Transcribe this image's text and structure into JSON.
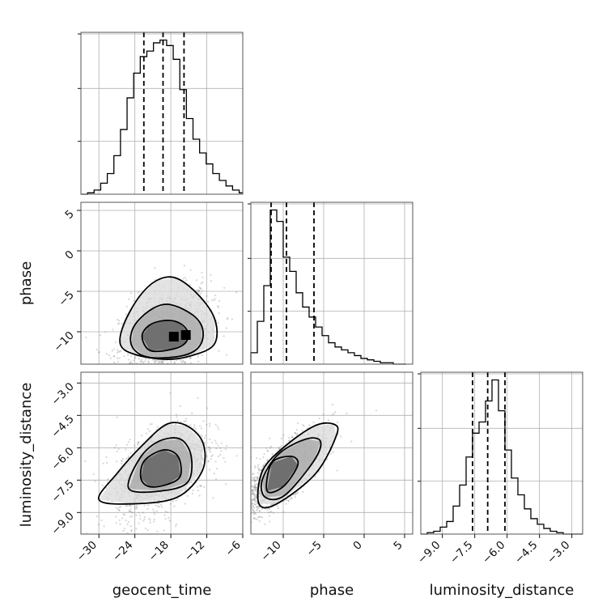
{
  "chart_data": {
    "type": "corner",
    "parameters": [
      "geocent_time",
      "phase",
      "luminosity_distance"
    ],
    "ranges": {
      "geocent_time": [
        -33,
        -6
      ],
      "phase": [
        -14,
        6
      ],
      "luminosity_distance": [
        -10,
        -2.5
      ]
    },
    "ticks": {
      "geocent_time": [
        -30,
        -24,
        -18,
        -12,
        -6
      ],
      "phase": [
        -10,
        -5,
        0,
        5
      ],
      "luminosity_distance": [
        -9.0,
        -7.5,
        -6.0,
        -4.5,
        -3.0
      ]
    },
    "tick_labels": {
      "geocent_time": [
        "−30",
        "−24",
        "−18",
        "−12",
        "−6"
      ],
      "phase": [
        "−10",
        "−5",
        "0",
        "5"
      ],
      "luminosity_distance": [
        "−9.0",
        "−7.5",
        "−6.0",
        "−4.5",
        "−3.0"
      ]
    },
    "quantiles": {
      "geocent_time": [
        -22.5,
        -19.3,
        -15.8
      ],
      "phase": [
        -11.5,
        -9.6,
        -6.2
      ],
      "luminosity_distance": [
        -7.6,
        -6.9,
        -6.1
      ]
    },
    "histograms": {
      "geocent_time": {
        "edges": [
          -33,
          -31.9,
          -30.8,
          -29.7,
          -28.6,
          -27.5,
          -26.4,
          -25.3,
          -24.2,
          -23.1,
          -22.0,
          -20.9,
          -19.8,
          -18.7,
          -17.6,
          -16.5,
          -15.4,
          -14.3,
          -13.2,
          -12.1,
          -11.0,
          -9.9,
          -8.8,
          -7.7,
          -6.6,
          -6.0
        ],
        "counts": [
          0,
          1,
          3,
          8,
          15,
          28,
          47,
          70,
          88,
          100,
          104,
          110,
          112,
          108,
          98,
          76,
          55,
          40,
          30,
          22,
          15,
          10,
          6,
          3,
          1
        ]
      },
      "phase": {
        "edges": [
          -14,
          -13.2,
          -12.4,
          -11.6,
          -10.8,
          -10.0,
          -9.2,
          -8.4,
          -7.6,
          -6.8,
          -6.0,
          -5.2,
          -4.4,
          -3.6,
          -2.8,
          -2.0,
          -1.2,
          -0.4,
          0.4,
          1.2,
          2.0,
          2.8,
          3.6,
          4.4,
          5.2
        ],
        "counts": [
          8,
          30,
          55,
          108,
          100,
          75,
          65,
          50,
          40,
          33,
          26,
          20,
          15,
          12,
          10,
          8,
          6,
          4,
          3,
          2,
          1,
          1,
          0,
          0
        ]
      },
      "luminosity_distance": {
        "edges": [
          -10.0,
          -9.7,
          -9.4,
          -9.1,
          -8.8,
          -8.5,
          -8.2,
          -7.9,
          -7.6,
          -7.3,
          -7.0,
          -6.7,
          -6.4,
          -6.1,
          -5.8,
          -5.5,
          -5.2,
          -4.9,
          -4.6,
          -4.3,
          -4.0,
          -3.7,
          -3.4,
          -3.1,
          -2.8,
          -2.5
        ],
        "counts": [
          0,
          1,
          2,
          5,
          9,
          20,
          35,
          55,
          72,
          80,
          95,
          110,
          88,
          60,
          40,
          28,
          18,
          11,
          7,
          4,
          2,
          1,
          0,
          0,
          0
        ]
      }
    },
    "panels_2d": [
      {
        "x": "geocent_time",
        "y": "phase",
        "center": [
          -19.0,
          -10.3
        ],
        "contours": [
          {
            "level": 0.39,
            "points": [
              [
                -21.5,
                -12.3
              ],
              [
                -18.0,
                -12.2
              ],
              [
                -15.6,
                -11.4
              ],
              [
                -15.2,
                -10.0
              ],
              [
                -16.6,
                -8.9
              ],
              [
                -19.0,
                -8.6
              ],
              [
                -21.6,
                -9.2
              ],
              [
                -22.8,
                -10.6
              ]
            ]
          },
          {
            "level": 0.86,
            "points": [
              [
                -22.5,
                -13.0
              ],
              [
                -18.5,
                -13.2
              ],
              [
                -14.6,
                -12.6
              ],
              [
                -12.8,
                -11.2
              ],
              [
                -12.9,
                -9.2
              ],
              [
                -15.0,
                -7.6
              ],
              [
                -18.6,
                -6.6
              ],
              [
                -21.6,
                -7.4
              ],
              [
                -24.2,
                -9.4
              ],
              [
                -24.6,
                -11.6
              ]
            ]
          },
          {
            "level": 0.99,
            "points": [
              [
                -24.0,
                -12.8
              ],
              [
                -19.0,
                -13.4
              ],
              [
                -14.8,
                -13.0
              ],
              [
                -10.8,
                -11.6
              ],
              [
                -10.6,
                -8.6
              ],
              [
                -13.2,
                -5.6
              ],
              [
                -17.0,
                -3.4
              ],
              [
                -20.2,
                -3.6
              ],
              [
                -23.2,
                -5.6
              ],
              [
                -25.8,
                -9.0
              ],
              [
                -26.4,
                -11.6
              ]
            ]
          }
        ],
        "density_peak": [
          [
            -17.5,
            -10.6
          ],
          [
            -15.5,
            -10.4
          ]
        ]
      },
      {
        "x": "geocent_time",
        "y": "luminosity_distance",
        "center": [
          -19.5,
          -7.0
        ],
        "contours": [
          {
            "level": 0.39,
            "points": [
              [
                -23.0,
                -7.4
              ],
              [
                -21.6,
                -7.8
              ],
              [
                -18.6,
                -7.7
              ],
              [
                -16.4,
                -7.3
              ],
              [
                -16.8,
                -6.4
              ],
              [
                -19.2,
                -6.1
              ],
              [
                -22.4,
                -6.6
              ]
            ]
          },
          {
            "level": 0.86,
            "points": [
              [
                -25.0,
                -7.9
              ],
              [
                -19.6,
                -8.0
              ],
              [
                -15.2,
                -7.6
              ],
              [
                -14.6,
                -6.4
              ],
              [
                -16.4,
                -5.6
              ],
              [
                -20.0,
                -5.7
              ],
              [
                -23.2,
                -6.5
              ]
            ]
          },
          {
            "level": 0.99,
            "points": [
              [
                -30.0,
                -8.4
              ],
              [
                -24.6,
                -8.6
              ],
              [
                -17.0,
                -8.3
              ],
              [
                -12.8,
                -7.1
              ],
              [
                -12.6,
                -5.8
              ],
              [
                -15.2,
                -5.0
              ],
              [
                -18.6,
                -4.9
              ],
              [
                -22.8,
                -5.9
              ],
              [
                -27.0,
                -7.2
              ]
            ]
          }
        ]
      },
      {
        "x": "phase",
        "y": "luminosity_distance",
        "center": [
          -10.5,
          -7.3
        ],
        "contours": [
          {
            "level": 0.39,
            "points": [
              [
                -12.0,
                -8.0
              ],
              [
                -10.0,
                -7.8
              ],
              [
                -8.2,
                -6.8
              ],
              [
                -9.0,
                -6.4
              ],
              [
                -11.4,
                -6.7
              ]
            ]
          },
          {
            "level": 0.86,
            "points": [
              [
                -12.2,
                -8.3
              ],
              [
                -9.8,
                -8.2
              ],
              [
                -6.2,
                -6.6
              ],
              [
                -5.4,
                -5.7
              ],
              [
                -7.2,
                -5.6
              ],
              [
                -10.6,
                -6.3
              ],
              [
                -12.6,
                -7.5
              ]
            ]
          },
          {
            "level": 0.99,
            "points": [
              [
                -13.0,
                -8.6
              ],
              [
                -10.8,
                -8.6
              ],
              [
                -6.0,
                -7.2
              ],
              [
                -3.4,
                -5.4
              ],
              [
                -3.8,
                -4.9
              ],
              [
                -6.2,
                -5.0
              ],
              [
                -10.0,
                -6.0
              ],
              [
                -12.6,
                -7.1
              ]
            ]
          }
        ]
      }
    ],
    "grid": true
  }
}
